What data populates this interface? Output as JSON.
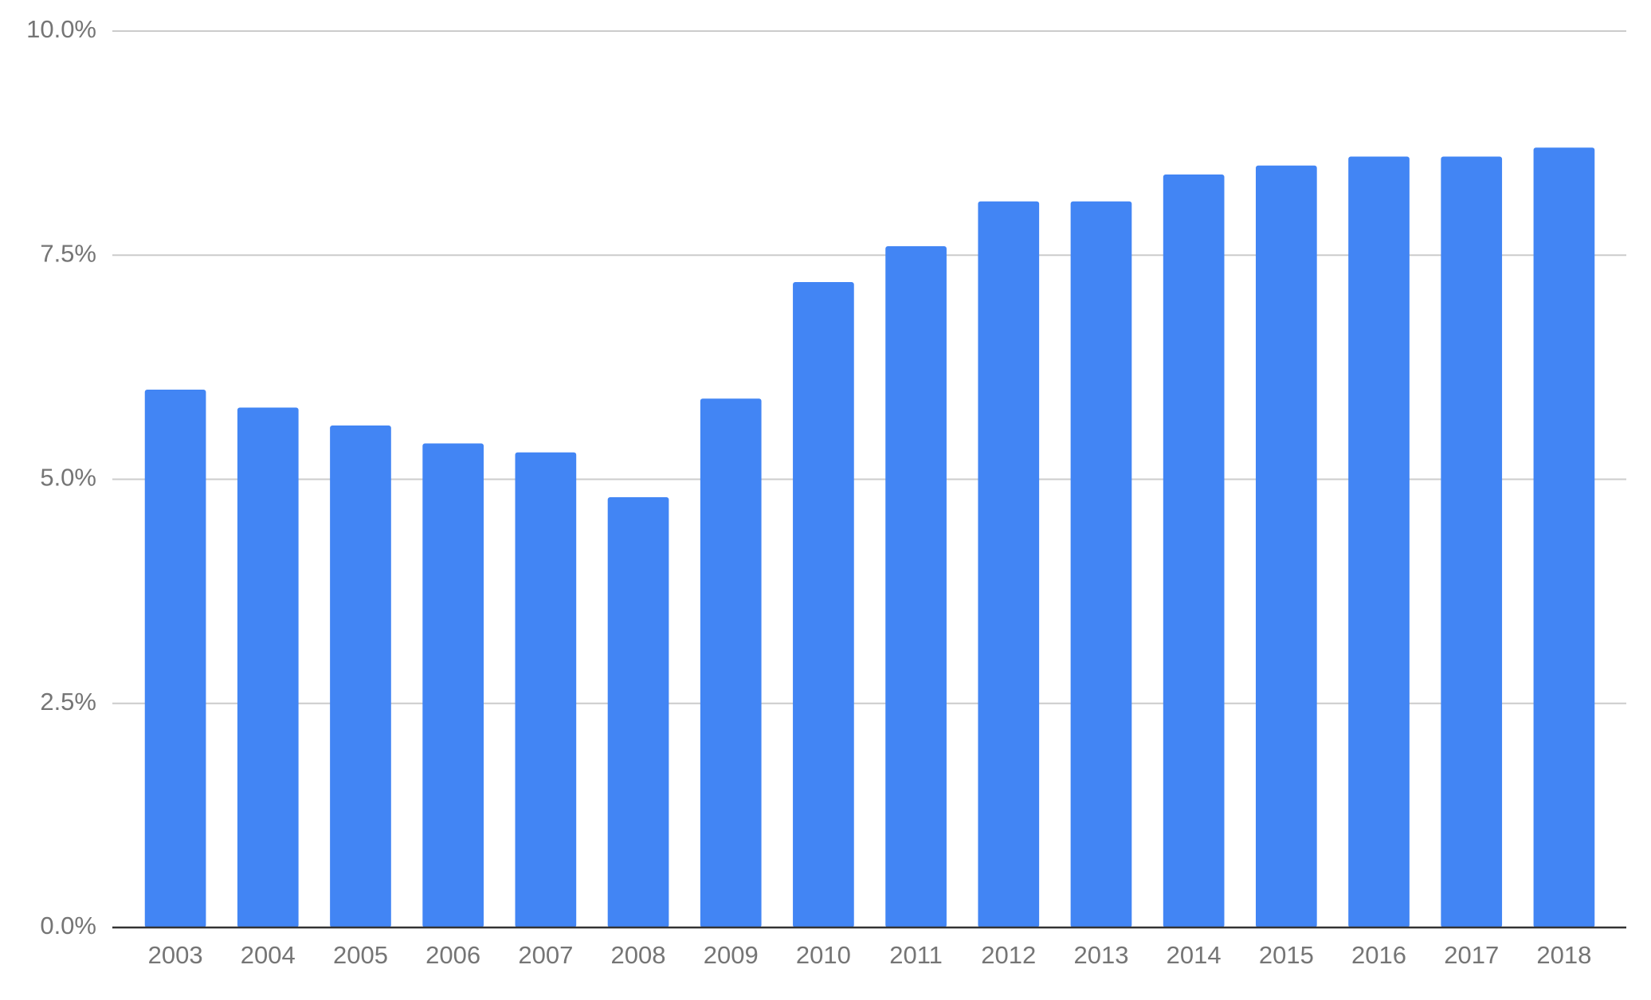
{
  "chart_data": {
    "type": "bar",
    "categories": [
      "2003",
      "2004",
      "2005",
      "2006",
      "2007",
      "2008",
      "2009",
      "2010",
      "2011",
      "2012",
      "2013",
      "2014",
      "2015",
      "2016",
      "2017",
      "2018"
    ],
    "values": [
      6.0,
      5.8,
      5.6,
      5.4,
      5.3,
      4.8,
      5.9,
      7.2,
      7.6,
      8.1,
      8.1,
      8.4,
      8.5,
      8.6,
      8.6,
      8.7
    ],
    "color": "#4285f4",
    "ylim": [
      0,
      10
    ],
    "yticks": [
      {
        "value": 0,
        "label": "0.0%"
      },
      {
        "value": 2.5,
        "label": "2.5%"
      },
      {
        "value": 5,
        "label": "5.0%"
      },
      {
        "value": 7.5,
        "label": "7.5%"
      },
      {
        "value": 10,
        "label": "10.0%"
      }
    ],
    "grid": true
  }
}
